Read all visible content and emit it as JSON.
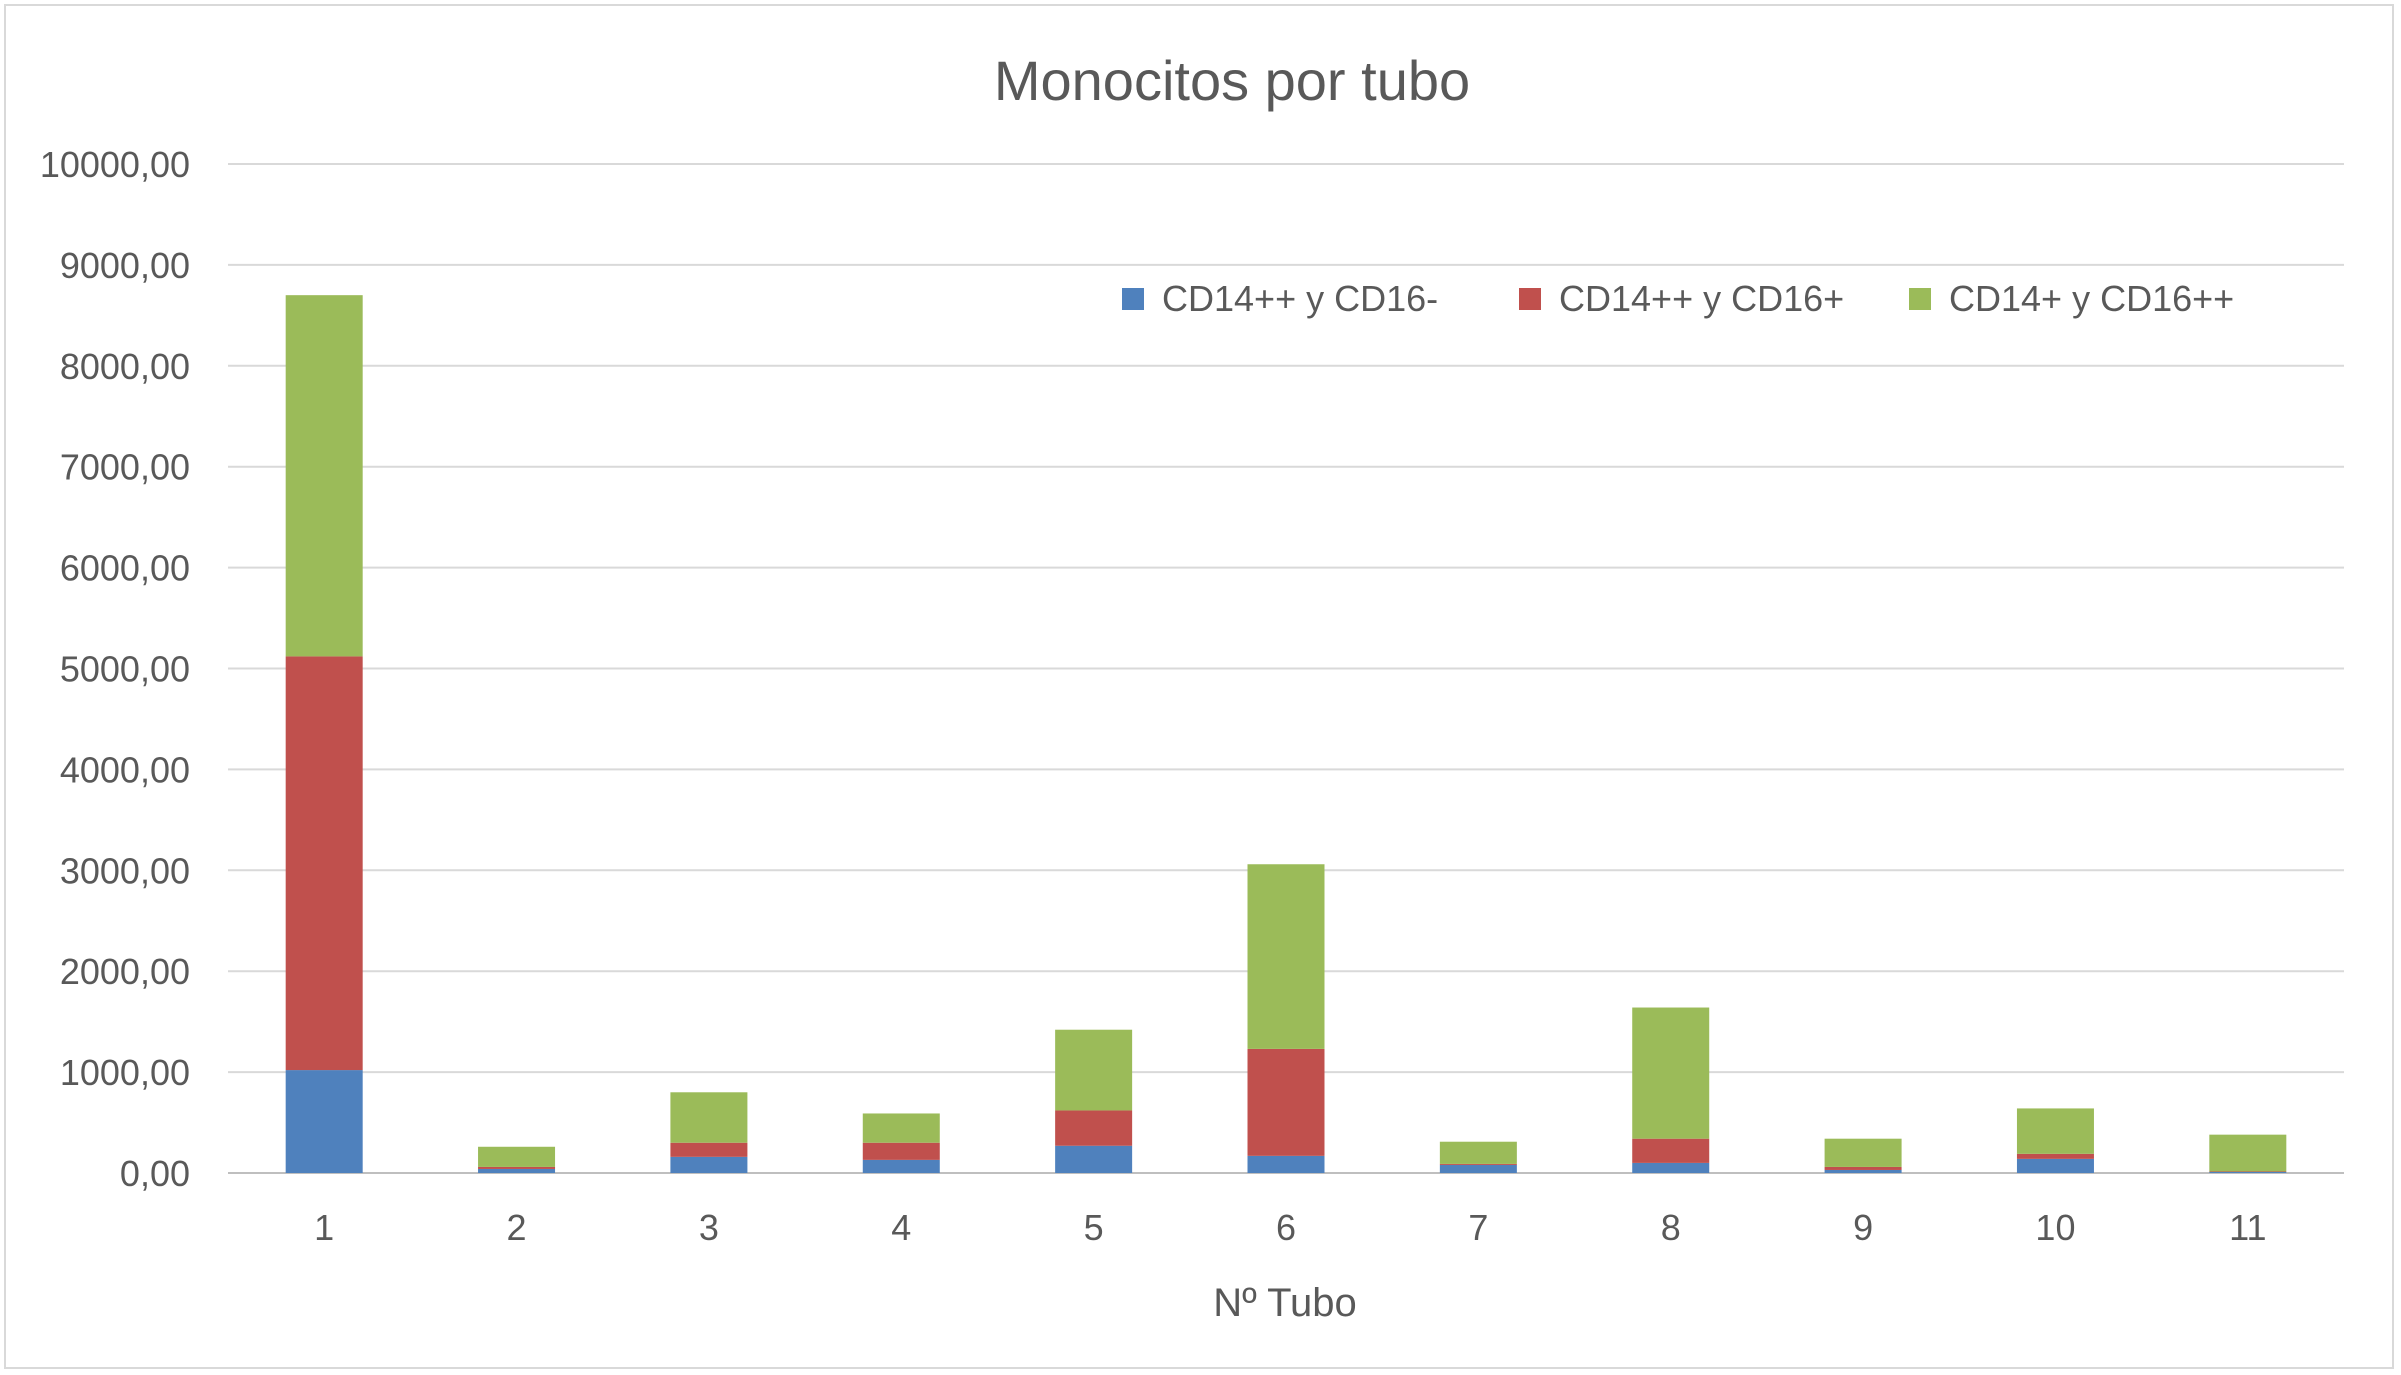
{
  "chart_data": {
    "type": "bar",
    "stacked": true,
    "title": "Monocitos por tubo",
    "xlabel": "Nº Tubo",
    "ylabel": "",
    "ylim": [
      0,
      10000
    ],
    "ytick_values": [
      0,
      1000,
      2000,
      3000,
      4000,
      5000,
      6000,
      7000,
      8000,
      9000,
      10000
    ],
    "ytick_labels": [
      "0,00",
      "1000,00",
      "2000,00",
      "3000,00",
      "4000,00",
      "5000,00",
      "6000,00",
      "7000,00",
      "8000,00",
      "9000,00",
      "10000,00"
    ],
    "categories": [
      "1",
      "2",
      "3",
      "4",
      "5",
      "6",
      "7",
      "8",
      "9",
      "10",
      "11"
    ],
    "grid": true,
    "legend_position": "top-right",
    "series": [
      {
        "name": "CD14++ y CD16-",
        "color": "#4f81bd",
        "values": [
          1020,
          40,
          160,
          130,
          270,
          170,
          80,
          100,
          30,
          140,
          10
        ]
      },
      {
        "name": "CD14++ y CD16+",
        "color": "#c0504d",
        "values": [
          4100,
          20,
          140,
          170,
          350,
          1060,
          10,
          240,
          30,
          50,
          5
        ]
      },
      {
        "name": "CD14+ y CD16++",
        "color": "#9bbb59",
        "values": [
          3580,
          200,
          500,
          290,
          800,
          1830,
          220,
          1300,
          280,
          450,
          365
        ]
      }
    ]
  }
}
